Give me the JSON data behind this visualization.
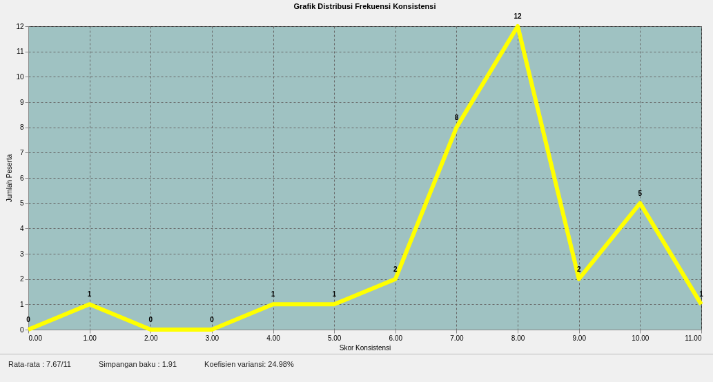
{
  "chart_data": {
    "type": "line",
    "title": "Grafik Distribusi Frekuensi Konsistensi",
    "xlabel": "Skor Konsistensi",
    "ylabel": "Jumlah Peserta",
    "x": [
      0,
      1,
      2,
      3,
      4,
      5,
      6,
      7,
      8,
      9,
      10,
      11
    ],
    "series": [
      {
        "color": "#ffff00",
        "values": [
          0,
          1,
          0,
          0,
          1,
          1,
          2,
          8,
          12,
          2,
          5,
          1
        ]
      }
    ],
    "xlim": [
      0,
      11
    ],
    "xticks": [
      {
        "value": 0,
        "label": "0.00"
      },
      {
        "value": 1,
        "label": "1.00"
      },
      {
        "value": 2,
        "label": "2.00"
      },
      {
        "value": 3,
        "label": "3.00"
      },
      {
        "value": 4,
        "label": "4.00"
      },
      {
        "value": 5,
        "label": "5.00"
      },
      {
        "value": 6,
        "label": "6.00"
      },
      {
        "value": 7,
        "label": "7.00"
      },
      {
        "value": 8,
        "label": "8.00"
      },
      {
        "value": 9,
        "label": "9.00"
      },
      {
        "value": 10,
        "label": "10.00"
      },
      {
        "value": 11,
        "label": "11.00"
      }
    ],
    "ylim": [
      0,
      12
    ],
    "yticks": [
      0,
      1,
      2,
      3,
      4,
      5,
      6,
      7,
      8,
      9,
      10,
      11,
      12
    ],
    "grid": true,
    "data_labels": true,
    "marker": "none",
    "line_style": "solid",
    "annotations": [
      "Rata-rata : 7.67/11",
      "Simpangan baku : 1.91",
      "Koefisien variansi: 24.98%"
    ]
  }
}
